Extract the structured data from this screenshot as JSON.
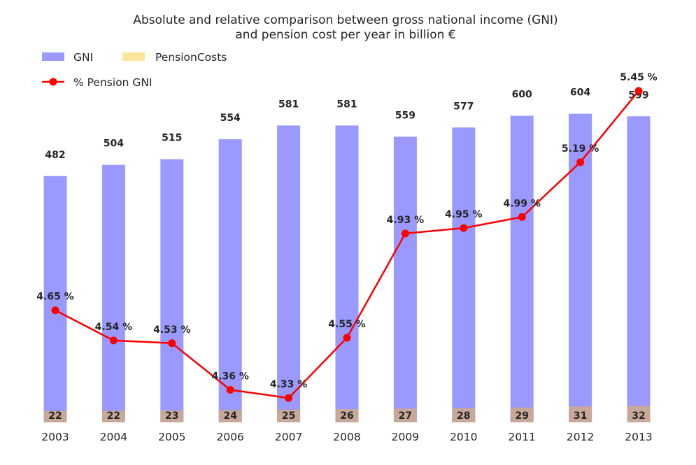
{
  "chart_data": {
    "type": "bar",
    "title_line1": "Absolute and relative comparison between gross national income (GNI)",
    "title_line2": "and pension cost per year in billion €",
    "categories": [
      "2003",
      "2004",
      "2005",
      "2006",
      "2007",
      "2008",
      "2009",
      "2010",
      "2011",
      "2012",
      "2013"
    ],
    "series": [
      {
        "name": "GNI",
        "kind": "bar",
        "color": "#9999ff",
        "values": [
          482,
          504,
          515,
          554,
          581,
          581,
          559,
          577,
          600,
          604,
          599
        ],
        "labels": [
          "482",
          "504",
          "515",
          "554",
          "581",
          "581",
          "559",
          "577",
          "600",
          "604",
          "599"
        ]
      },
      {
        "name": "PensionCosts",
        "kind": "bar",
        "color": "#ffe49c",
        "overlay_color": "#c8a898",
        "values": [
          22,
          22,
          23,
          24,
          25,
          26,
          27,
          28,
          29,
          31,
          32
        ],
        "labels": [
          "22",
          "22",
          "23",
          "24",
          "25",
          "26",
          "27",
          "28",
          "29",
          "31",
          "32"
        ]
      },
      {
        "name": "% Pension GNI",
        "kind": "line",
        "color": "#ff0000",
        "values": [
          4.65,
          4.54,
          4.53,
          4.36,
          4.33,
          4.55,
          4.93,
          4.95,
          4.99,
          5.19,
          5.45
        ],
        "labels": [
          "4.65 %",
          "4.54 %",
          "4.53 %",
          "4.36 %",
          "4.33 %",
          "4.55 %",
          "4.93 %",
          "4.95 %",
          "4.99 %",
          "5.19 %",
          "5.45 %"
        ]
      }
    ],
    "ylim_bars": [
      0,
      650
    ],
    "ylim_pct": [
      4.3,
      5.45
    ],
    "grid": false,
    "legend_placement": "top-left"
  }
}
